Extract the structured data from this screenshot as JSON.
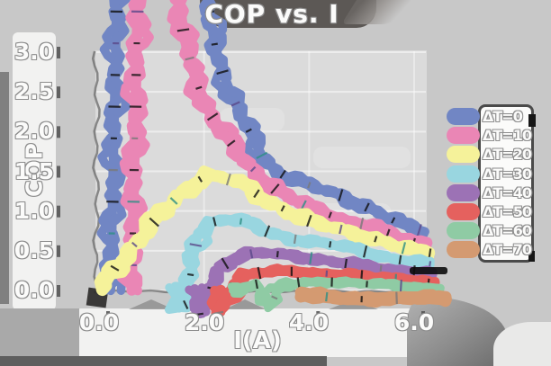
{
  "chart_data": {
    "type": "line",
    "title": "COP vs. I",
    "xlabel": "I(A)",
    "ylabel": "COP",
    "xlim": [
      0,
      6.7
    ],
    "ylim": [
      -0.35,
      3.0
    ],
    "xtick_values": [
      0,
      2,
      4,
      6
    ],
    "xtick_labels": [
      "0.0",
      "2.0",
      "4.0",
      "6.0"
    ],
    "ytick_values": [
      0,
      0.5,
      1,
      1.5,
      2,
      2.5,
      3
    ],
    "ytick_labels": [
      "0.0",
      "0.5",
      "1.0",
      "1.5",
      "2.0",
      "2.5",
      "3.0"
    ],
    "grid": true,
    "legend_position": "right",
    "series": [
      {
        "name": "ΔT=0",
        "color": "#7186c4",
        "points": [
          [
            0.22,
            0
          ],
          [
            0.34,
            3.75
          ],
          [
            2.05,
            3.75
          ],
          [
            2.2,
            3.1
          ],
          [
            2.35,
            2.75
          ],
          [
            2.5,
            2.5
          ],
          [
            2.7,
            2.2
          ],
          [
            2.9,
            1.95
          ],
          [
            3.1,
            1.7
          ],
          [
            3.3,
            1.55
          ],
          [
            3.6,
            1.42
          ],
          [
            3.9,
            1.35
          ],
          [
            4.2,
            1.28
          ],
          [
            4.6,
            1.2
          ],
          [
            5.0,
            1.08
          ],
          [
            5.4,
            0.95
          ],
          [
            5.7,
            0.85
          ],
          [
            6.0,
            0.78
          ],
          [
            6.2,
            0.74
          ]
        ]
      },
      {
        "name": "ΔT=10",
        "color": "#ea86b5",
        "points": [
          [
            0.62,
            0
          ],
          [
            0.74,
            3.75
          ],
          [
            1.5,
            3.75
          ],
          [
            1.62,
            3.2
          ],
          [
            1.75,
            2.85
          ],
          [
            1.9,
            2.55
          ],
          [
            2.1,
            2.25
          ],
          [
            2.35,
            2.0
          ],
          [
            2.6,
            1.78
          ],
          [
            2.85,
            1.58
          ],
          [
            3.1,
            1.42
          ],
          [
            3.35,
            1.28
          ],
          [
            3.6,
            1.18
          ],
          [
            3.9,
            1.08
          ],
          [
            4.2,
            1.0
          ],
          [
            4.6,
            0.9
          ],
          [
            5.0,
            0.84
          ],
          [
            5.4,
            0.74
          ],
          [
            5.7,
            0.67
          ],
          [
            6.0,
            0.62
          ],
          [
            6.25,
            0.6
          ]
        ]
      },
      {
        "name": "ΔT=20",
        "color": "#f5f29a",
        "points": [
          [
            0.05,
            0
          ],
          [
            0.3,
            0.28
          ],
          [
            0.6,
            0.52
          ],
          [
            0.9,
            0.75
          ],
          [
            1.2,
            0.97
          ],
          [
            1.5,
            1.18
          ],
          [
            1.8,
            1.35
          ],
          [
            2.05,
            1.45
          ],
          [
            2.35,
            1.42
          ],
          [
            2.7,
            1.35
          ],
          [
            3.0,
            1.22
          ],
          [
            3.3,
            1.1
          ],
          [
            3.6,
            1.0
          ],
          [
            3.9,
            0.9
          ],
          [
            4.2,
            0.83
          ],
          [
            4.6,
            0.77
          ],
          [
            5.0,
            0.7
          ],
          [
            5.4,
            0.62
          ],
          [
            5.7,
            0.55
          ],
          [
            6.0,
            0.5
          ],
          [
            6.3,
            0.47
          ]
        ]
      },
      {
        "name": "ΔT=30",
        "color": "#99d6e0",
        "points": [
          [
            1.45,
            0.05
          ],
          [
            1.52,
            -0.22
          ],
          [
            1.65,
            -0.18
          ],
          [
            1.78,
            0.35
          ],
          [
            1.88,
            0.72
          ],
          [
            2.1,
            0.85
          ],
          [
            2.4,
            0.9
          ],
          [
            2.7,
            0.87
          ],
          [
            3.0,
            0.8
          ],
          [
            3.3,
            0.72
          ],
          [
            3.6,
            0.66
          ],
          [
            4.0,
            0.62
          ],
          [
            4.4,
            0.58
          ],
          [
            4.8,
            0.53
          ],
          [
            5.2,
            0.47
          ],
          [
            5.6,
            0.4
          ],
          [
            6.0,
            0.36
          ],
          [
            6.3,
            0.33
          ]
        ]
      },
      {
        "name": "ΔT=40",
        "color": "#9c72b5",
        "points": [
          [
            1.82,
            0.02
          ],
          [
            1.9,
            -0.3
          ],
          [
            2.02,
            -0.25
          ],
          [
            2.15,
            0.1
          ],
          [
            2.3,
            0.3
          ],
          [
            2.6,
            0.42
          ],
          [
            2.9,
            0.46
          ],
          [
            3.2,
            0.47
          ],
          [
            3.5,
            0.45
          ],
          [
            3.9,
            0.42
          ],
          [
            4.3,
            0.38
          ],
          [
            4.7,
            0.34
          ],
          [
            5.1,
            0.3
          ],
          [
            5.5,
            0.27
          ],
          [
            6.0,
            0.24
          ],
          [
            6.35,
            0.2
          ]
        ]
      },
      {
        "name": "ΔT=50",
        "color": "#e5615e",
        "points": [
          [
            2.2,
            0.0
          ],
          [
            2.28,
            -0.28
          ],
          [
            2.4,
            -0.2
          ],
          [
            2.55,
            0.08
          ],
          [
            2.75,
            0.18
          ],
          [
            3.05,
            0.22
          ],
          [
            3.4,
            0.24
          ],
          [
            3.8,
            0.24
          ],
          [
            4.2,
            0.22
          ],
          [
            4.6,
            0.2
          ],
          [
            5.0,
            0.18
          ],
          [
            5.4,
            0.16
          ],
          [
            5.9,
            0.14
          ],
          [
            6.4,
            0.1
          ]
        ]
      },
      {
        "name": "ΔT=60",
        "color": "#8fcba4",
        "points": [
          [
            2.55,
            0.0
          ],
          [
            2.75,
            0.05
          ],
          [
            3.0,
            0.08
          ],
          [
            3.15,
            -0.1
          ],
          [
            3.28,
            -0.18
          ],
          [
            3.4,
            0.0
          ],
          [
            3.6,
            0.07
          ],
          [
            3.9,
            0.1
          ],
          [
            4.3,
            0.11
          ],
          [
            4.7,
            0.1
          ],
          [
            5.1,
            0.08
          ],
          [
            5.5,
            0.07
          ],
          [
            6.0,
            0.05
          ],
          [
            6.5,
            0.03
          ]
        ]
      },
      {
        "name": "ΔT=70",
        "color": "#d49a71",
        "points": [
          [
            3.85,
            -0.03
          ],
          [
            4.2,
            -0.07
          ],
          [
            4.6,
            -0.1
          ],
          [
            5.0,
            -0.11
          ],
          [
            5.4,
            -0.1
          ],
          [
            5.8,
            -0.09
          ],
          [
            6.2,
            -0.09
          ],
          [
            6.6,
            -0.11
          ]
        ]
      }
    ]
  },
  "style": {
    "background": "#c8c8c8",
    "plot_background": "#dbdbdb",
    "label_band": "#f2f2f1",
    "gridline": "#ffffff",
    "ink": "#4f4f4f",
    "text_fill": "#fbfbfa",
    "text_outline": "#8d8d8d",
    "shadow_blob": "#5c5855"
  }
}
